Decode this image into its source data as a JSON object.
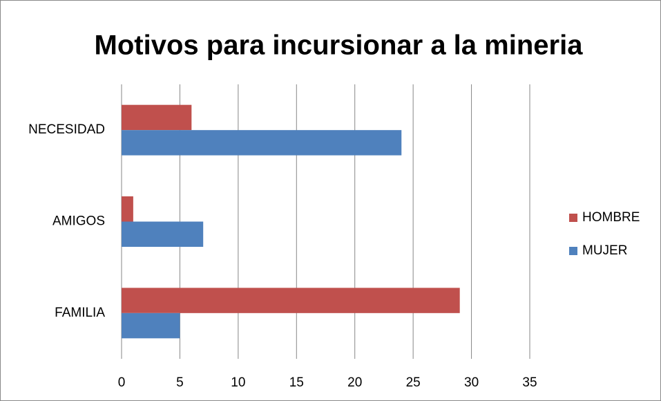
{
  "chart_data": {
    "type": "bar",
    "orientation": "horizontal",
    "title": "Motivos para incursionar a la mineria",
    "categories": [
      "FAMILIA",
      "AMIGOS",
      "NECESIDAD"
    ],
    "series": [
      {
        "name": "HOMBRE",
        "color": "#c0504d",
        "values": [
          29,
          1,
          6
        ]
      },
      {
        "name": "MUJER",
        "color": "#4f81bd",
        "values": [
          5,
          7,
          24
        ]
      }
    ],
    "xlim": [
      0,
      35
    ],
    "xticks": [
      0,
      5,
      10,
      15,
      20,
      25,
      30,
      35
    ],
    "grid": true,
    "legend": "right"
  }
}
